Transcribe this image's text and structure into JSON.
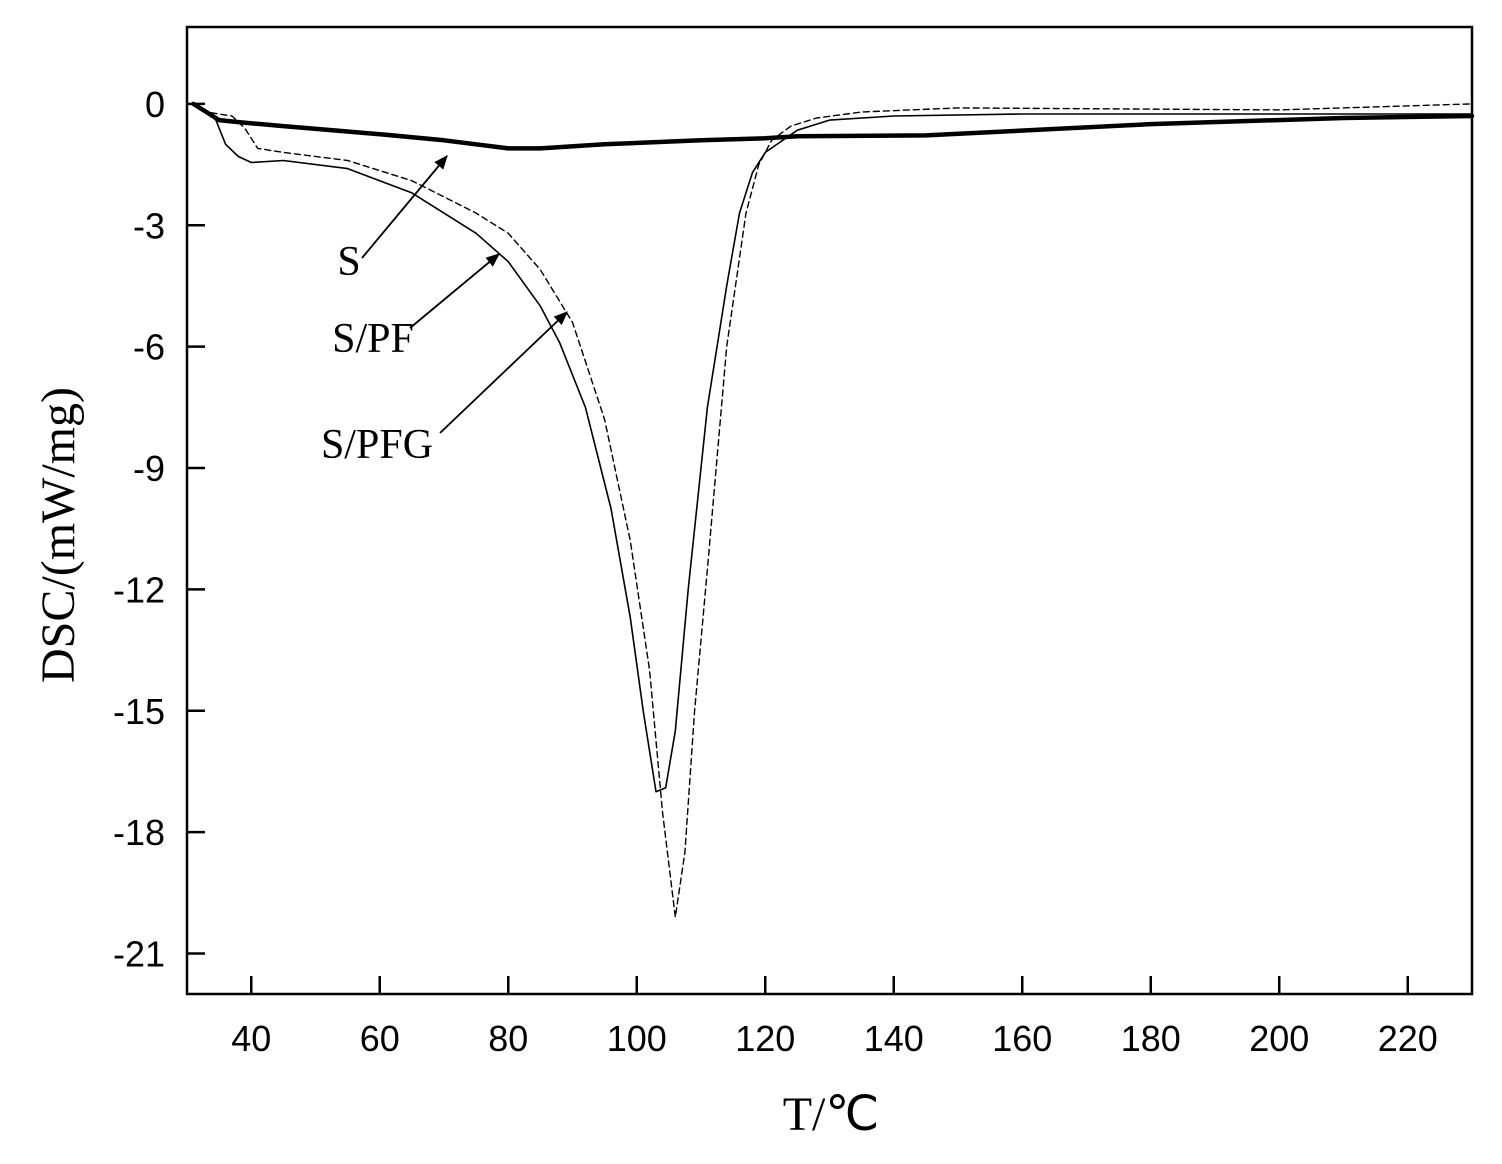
{
  "chart_data": {
    "type": "line",
    "title": "",
    "xlabel": "T/℃",
    "ylabel": "DSC/(mW/mg)",
    "xlim": [
      30,
      230
    ],
    "ylim": [
      -22,
      1.9
    ],
    "x_ticks": [
      40,
      60,
      80,
      100,
      120,
      140,
      160,
      180,
      200,
      220
    ],
    "y_ticks": [
      0,
      -3,
      -6,
      -9,
      -12,
      -15,
      -18,
      -21
    ],
    "grid": false,
    "legend": "none",
    "series": [
      {
        "name": "S",
        "style": "thick-solid",
        "color": "#000000",
        "x": [
          31,
          33,
          35,
          38,
          45,
          60,
          70,
          80,
          85,
          95,
          110,
          120,
          125,
          145,
          180,
          210,
          230
        ],
        "y": [
          0,
          -0.2,
          -0.4,
          -0.45,
          -0.55,
          -0.75,
          -0.9,
          -1.1,
          -1.1,
          -1.0,
          -0.9,
          -0.85,
          -0.8,
          -0.78,
          -0.5,
          -0.35,
          -0.3
        ]
      },
      {
        "name": "S/PF",
        "style": "thin-solid",
        "color": "#000000",
        "x": [
          31,
          33,
          34.5,
          36,
          38,
          40,
          45,
          55,
          65,
          75,
          80,
          85,
          88,
          92,
          96,
          99,
          101,
          103,
          104.5,
          106,
          108,
          111,
          114,
          116,
          118,
          120,
          125,
          130,
          140,
          160,
          200,
          230
        ],
        "y": [
          0,
          -0.2,
          -0.4,
          -1.0,
          -1.3,
          -1.45,
          -1.4,
          -1.6,
          -2.2,
          -3.2,
          -3.9,
          -5.0,
          -5.9,
          -7.5,
          -10.0,
          -12.7,
          -15.0,
          -17.0,
          -16.9,
          -15.5,
          -12.0,
          -7.5,
          -4.5,
          -2.7,
          -1.7,
          -1.2,
          -0.65,
          -0.4,
          -0.3,
          -0.25,
          -0.25,
          -0.25
        ]
      },
      {
        "name": "S/PFG",
        "style": "dashed",
        "color": "#000000",
        "x": [
          31,
          33,
          35,
          37,
          39,
          41,
          45,
          55,
          65,
          75,
          80,
          85,
          90,
          95,
          99,
          102,
          104,
          106,
          107.5,
          109,
          111,
          114,
          117,
          119,
          121,
          124,
          128,
          135,
          150,
          200,
          230
        ],
        "y": [
          0,
          -0.2,
          -0.25,
          -0.3,
          -0.6,
          -1.1,
          -1.2,
          -1.4,
          -1.9,
          -2.7,
          -3.2,
          -4.1,
          -5.4,
          -7.8,
          -10.8,
          -14.0,
          -17.5,
          -20.1,
          -18.5,
          -15.0,
          -11.5,
          -6.0,
          -2.7,
          -1.5,
          -0.9,
          -0.55,
          -0.35,
          -0.2,
          -0.1,
          -0.15,
          0.0
        ]
      }
    ],
    "annotations": [
      {
        "text": "S",
        "target_series": "S"
      },
      {
        "text": "S/PF",
        "target_series": "S/PF"
      },
      {
        "text": "S/PFG",
        "target_series": "S/PFG"
      }
    ]
  }
}
